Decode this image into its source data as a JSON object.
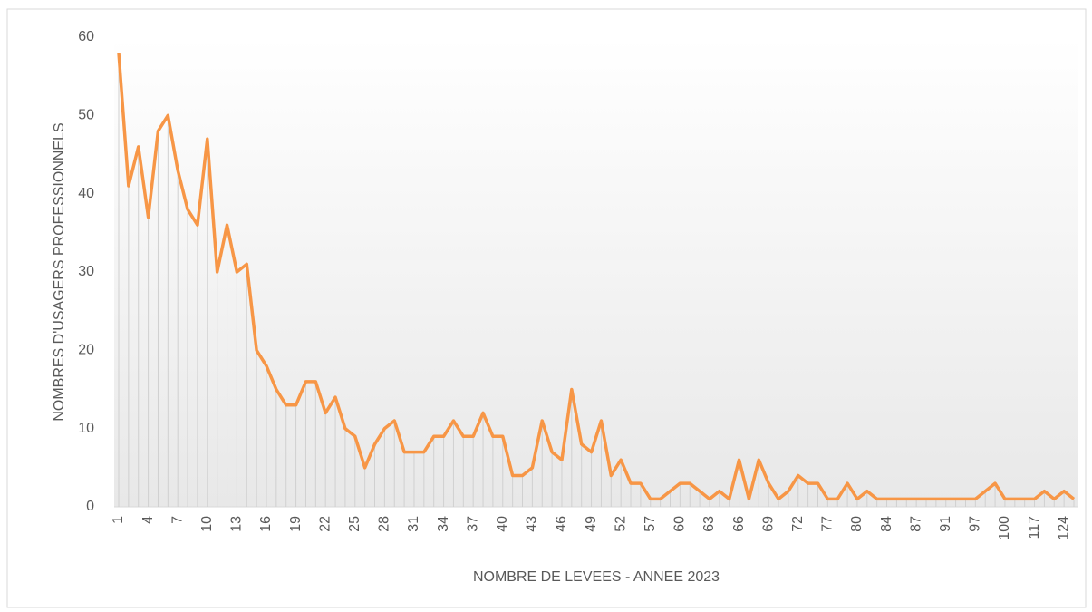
{
  "chart_data": {
    "type": "line",
    "x_label": "NOMBRE DE LEVEES - ANNEE 2023",
    "y_label": "NOMBRES D'USAGERS PROFESSIONNELS",
    "categories": [
      1,
      null,
      null,
      4,
      null,
      null,
      7,
      null,
      null,
      10,
      null,
      null,
      13,
      null,
      null,
      16,
      null,
      null,
      19,
      null,
      null,
      22,
      null,
      null,
      25,
      null,
      null,
      28,
      null,
      null,
      31,
      null,
      null,
      34,
      null,
      null,
      37,
      null,
      null,
      40,
      null,
      null,
      43,
      null,
      null,
      46,
      null,
      null,
      49,
      null,
      null,
      52,
      null,
      null,
      57,
      null,
      null,
      60,
      null,
      null,
      63,
      null,
      null,
      66,
      null,
      null,
      69,
      null,
      null,
      72,
      null,
      null,
      77,
      null,
      null,
      80,
      null,
      null,
      84,
      null,
      null,
      87,
      null,
      null,
      91,
      null,
      null,
      97,
      null,
      null,
      100,
      null,
      null,
      117,
      null,
      null,
      124,
      null
    ],
    "series": [
      {
        "name": "NOMBRES D'USAGERS PROFESSIONNELS",
        "color": "#f79646",
        "values": [
          58,
          41,
          46,
          37,
          48,
          50,
          43,
          38,
          36,
          47,
          30,
          36,
          30,
          31,
          20,
          18,
          15,
          13,
          13,
          16,
          16,
          12,
          14,
          10,
          9,
          5,
          8,
          10,
          11,
          7,
          7,
          7,
          9,
          9,
          11,
          9,
          9,
          12,
          9,
          9,
          4,
          4,
          5,
          11,
          7,
          6,
          15,
          8,
          7,
          11,
          4,
          6,
          3,
          3,
          1,
          1,
          2,
          3,
          3,
          2,
          1,
          2,
          1,
          6,
          1,
          6,
          3,
          1,
          2,
          4,
          3,
          3,
          1,
          1,
          3,
          1,
          2,
          1,
          1,
          1,
          1,
          1,
          1,
          1,
          1,
          1,
          1,
          1,
          2,
          3,
          1,
          1,
          1,
          1,
          2,
          1,
          2,
          1
        ]
      }
    ],
    "ylim": [
      0,
      60
    ],
    "yticks": [
      0,
      10,
      20,
      30,
      40,
      50,
      60
    ],
    "grid": false
  }
}
